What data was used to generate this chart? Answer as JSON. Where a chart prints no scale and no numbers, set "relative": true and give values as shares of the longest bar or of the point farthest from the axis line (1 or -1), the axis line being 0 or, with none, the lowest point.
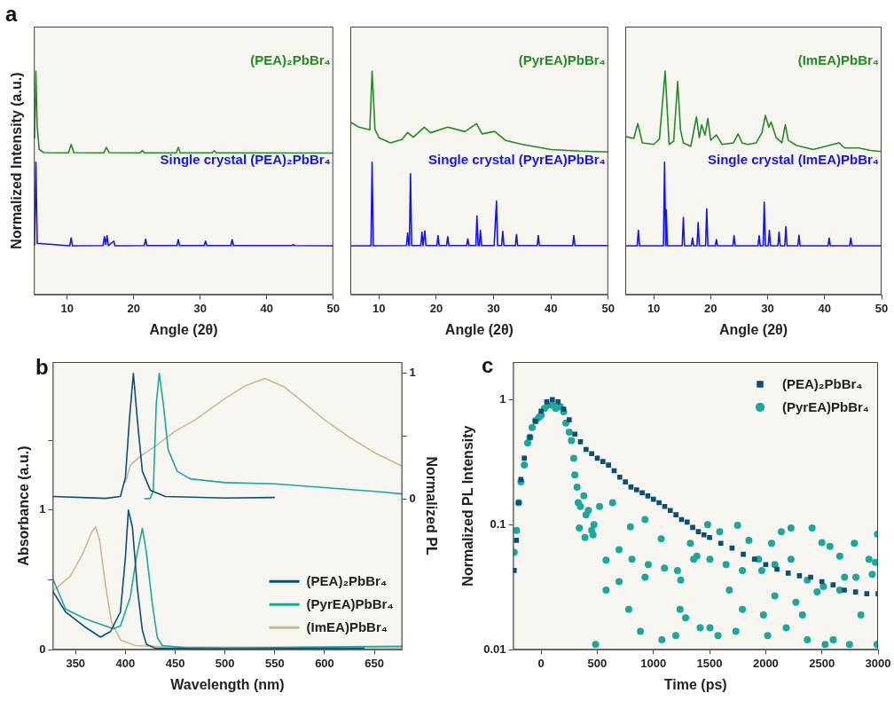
{
  "chart_data": [
    {
      "type": "line",
      "relative": true,
      "marker": "none",
      "annotations": [
        "a"
      ],
      "xlabel": "Angle (2θ)",
      "ylabel": "Normalized Intensity (a.u.)",
      "xlim": [
        5,
        50
      ],
      "xticks": [
        10,
        20,
        30,
        40,
        50
      ],
      "series": [
        {
          "name": "(PEA)₂PbBr₄",
          "color": "#228b22",
          "x": [
            5.1,
            5.3,
            5.5,
            5.8,
            6.5,
            10.2,
            10.6,
            11,
            15.5,
            15.9,
            16.3,
            21,
            21.3,
            21.6,
            26.4,
            26.7,
            27,
            31.8,
            32.1,
            32.4,
            50
          ],
          "values": [
            0.7,
            1,
            0.75,
            0.65,
            0.636,
            0.635,
            0.673,
            0.636,
            0.635,
            0.66,
            0.636,
            0.635,
            0.646,
            0.635,
            0.635,
            0.66,
            0.635,
            0.635,
            0.645,
            0.635,
            0.634
          ]
        },
        {
          "name": "Single crystal (PEA)₂PbBr₄",
          "color": "#1414f0",
          "x": [
            5.1,
            5.3,
            5.5,
            10.4,
            10.6,
            10.8,
            15.4,
            15.6,
            15.8,
            16,
            16.2,
            17,
            17.2,
            21.6,
            21.8,
            22,
            26.5,
            26.7,
            26.9,
            30.6,
            30.8,
            31,
            34.6,
            34.8,
            35,
            43.8,
            44,
            44.2,
            50
          ],
          "values": [
            0.22,
            0.593,
            0.23,
            0.219,
            0.254,
            0.219,
            0.22,
            0.26,
            0.225,
            0.265,
            0.22,
            0.24,
            0.219,
            0.22,
            0.249,
            0.22,
            0.22,
            0.247,
            0.22,
            0.22,
            0.24,
            0.22,
            0.22,
            0.247,
            0.22,
            0.22,
            0.225,
            0.22,
            0.219
          ]
        }
      ]
    },
    {
      "type": "line",
      "relative": true,
      "marker": "none",
      "xlabel": "Angle (2θ)",
      "xlim": [
        5,
        50
      ],
      "xticks": [
        10,
        20,
        30,
        40,
        50
      ],
      "series": [
        {
          "name": "(PyrEA)PbBr₄",
          "color": "#228b22",
          "x": [
            5,
            6.5,
            8.4,
            8.8,
            9.3,
            10,
            12,
            14,
            15,
            16,
            17.9,
            19,
            22,
            25,
            27,
            28,
            30.2,
            32,
            35,
            40,
            45,
            50
          ],
          "values": [
            0.773,
            0.75,
            0.738,
            1,
            0.74,
            0.703,
            0.68,
            0.695,
            0.726,
            0.705,
            0.75,
            0.725,
            0.75,
            0.73,
            0.766,
            0.72,
            0.731,
            0.692,
            0.673,
            0.65,
            0.643,
            0.639
          ]
        },
        {
          "name": "Single crystal (PyrEA)PbBr₄",
          "color": "#1414f0",
          "x": [
            5,
            8.6,
            8.8,
            9,
            14.8,
            15,
            15.2,
            15.3,
            15.5,
            15.7,
            17.3,
            17.5,
            17.7,
            17.8,
            18,
            18.2,
            20.1,
            20.3,
            20.5,
            21.8,
            22,
            22.2,
            25.3,
            25.5,
            25.7,
            26.9,
            27.1,
            27.3,
            27.5,
            27.7,
            27.9,
            30.1,
            30.5,
            30.7,
            31.4,
            31.6,
            31.8,
            33.8,
            34,
            34.2,
            37.6,
            37.8,
            38,
            43.8,
            44,
            44.2,
            50
          ],
          "values": [
            0.219,
            0.219,
            0.593,
            0.219,
            0.22,
            0.277,
            0.22,
            0.22,
            0.542,
            0.22,
            0.22,
            0.281,
            0.22,
            0.22,
            0.286,
            0.22,
            0.22,
            0.265,
            0.22,
            0.22,
            0.26,
            0.22,
            0.22,
            0.25,
            0.22,
            0.22,
            0.353,
            0.22,
            0.22,
            0.288,
            0.22,
            0.22,
            0.42,
            0.22,
            0.22,
            0.284,
            0.22,
            0.22,
            0.27,
            0.22,
            0.22,
            0.265,
            0.22,
            0.22,
            0.265,
            0.22,
            0.22
          ]
        }
      ]
    },
    {
      "type": "line",
      "relative": true,
      "marker": "none",
      "xlabel": "Angle (2θ)",
      "xlim": [
        5,
        50
      ],
      "xticks": [
        10,
        20,
        30,
        40,
        50
      ],
      "series": [
        {
          "name": "(ImEA)PbBr₄",
          "color": "#228b22",
          "x": [
            5,
            6.5,
            7.2,
            8,
            10,
            11,
            12,
            12.7,
            13.5,
            14.2,
            14.7,
            15.2,
            16.5,
            17.5,
            18,
            18.4,
            19,
            19.5,
            20,
            21,
            22,
            24,
            24.8,
            25.5,
            26.5,
            28,
            29,
            29.6,
            30.2,
            30.6,
            31.5,
            32.5,
            33.1,
            33.6,
            35,
            38,
            42.5,
            43.5,
            46,
            48,
            50
          ],
          "values": [
            0.708,
            0.7,
            0.766,
            0.68,
            0.673,
            0.697,
            1,
            0.673,
            0.687,
            0.955,
            0.738,
            0.68,
            0.664,
            0.796,
            0.703,
            0.761,
            0.715,
            0.789,
            0.692,
            0.715,
            0.673,
            0.68,
            0.72,
            0.68,
            0.673,
            0.68,
            0.726,
            0.803,
            0.75,
            0.773,
            0.703,
            0.68,
            0.761,
            0.692,
            0.669,
            0.65,
            0.68,
            0.657,
            0.657,
            0.646,
            0.641
          ]
        },
        {
          "name": "Single crystal (ImEA)PbBr₄",
          "color": "#1414f0",
          "x": [
            5,
            7.1,
            7.3,
            7.5,
            11.7,
            11.9,
            12.1,
            12.2,
            12.4,
            15,
            15.2,
            15.4,
            16.6,
            16.8,
            17,
            17.6,
            17.8,
            18,
            19.1,
            19.3,
            19.5,
            20.8,
            21,
            21.2,
            23.9,
            24.1,
            24.3,
            28.3,
            28.5,
            28.7,
            29.2,
            29.4,
            29.6,
            30.1,
            30.3,
            30.5,
            31.8,
            32,
            32.2,
            33,
            33.2,
            33.4,
            35.3,
            35.5,
            35.7,
            40.6,
            40.8,
            41,
            44.4,
            44.6,
            44.8,
            50
          ],
          "values": [
            0.219,
            0.219,
            0.288,
            0.219,
            0.219,
            0.593,
            0.219,
            0.38,
            0.219,
            0.219,
            0.346,
            0.219,
            0.219,
            0.254,
            0.219,
            0.219,
            0.323,
            0.219,
            0.219,
            0.385,
            0.219,
            0.219,
            0.247,
            0.219,
            0.219,
            0.265,
            0.219,
            0.219,
            0.265,
            0.219,
            0.219,
            0.415,
            0.219,
            0.219,
            0.288,
            0.219,
            0.219,
            0.281,
            0.219,
            0.219,
            0.304,
            0.219,
            0.219,
            0.267,
            0.219,
            0.219,
            0.254,
            0.219,
            0.219,
            0.254,
            0.219,
            0.219
          ]
        }
      ]
    },
    {
      "type": "line",
      "marker": "none",
      "annotations": [
        "b"
      ],
      "xlabel": "Wavelength (nm)",
      "ylabel": "Absorbance (a.u.)",
      "y2label": "Normalized PL",
      "legend": "bottom right",
      "xlim": [
        327,
        678
      ],
      "xticks": [
        350,
        400,
        450,
        500,
        550,
        600,
        650
      ],
      "ylim": [
        0,
        2.06
      ],
      "yticks": [
        0,
        {
          "value": 0.5,
          "label": null
        },
        1,
        {
          "value": 1.5,
          "label": null
        }
      ],
      "y2lim": [
        -1.2,
        1.09
      ],
      "y2ticks": [
        0,
        {
          "value": 0.5,
          "label": null
        },
        1
      ],
      "series": [
        {
          "name": "(PEA)₂PbBr₄",
          "color": "#0b4f78",
          "x": [
            327,
            340,
            360,
            375,
            385,
            395,
            400,
            403,
            407,
            412,
            417,
            421,
            430,
            500,
            600,
            640
          ],
          "values": [
            0.42,
            0.27,
            0.16,
            0.09,
            0.13,
            0.27,
            0.66,
            1,
            0.88,
            0.44,
            0.14,
            0.04,
            0.01,
            0.005,
            0.01,
            0.01
          ]
        },
        {
          "name": "(PyrEA)PbBr₄",
          "color": "#1aa89a",
          "x": [
            327,
            340,
            360,
            380,
            388,
            395,
            405,
            411,
            417,
            421,
            427,
            432,
            437,
            460,
            500,
            600,
            678
          ],
          "values": [
            0.51,
            0.29,
            0.22,
            0.17,
            0.15,
            0.17,
            0.38,
            0.66,
            0.87,
            0.7,
            0.33,
            0.09,
            0.03,
            0.015,
            0.012,
            0.02,
            0.025
          ]
        },
        {
          "name": "(ImEA)PbBr₄",
          "color": "#c9b99b",
          "x": [
            327,
            345,
            358,
            366,
            370,
            374,
            380,
            386,
            395,
            410,
            440,
            678
          ],
          "values": [
            0.42,
            0.53,
            0.7,
            0.84,
            0.88,
            0.79,
            0.46,
            0.2,
            0.07,
            0.03,
            0.02,
            0.015
          ]
        },
        {
          "color": "#0b4f78",
          "axis": "y2",
          "x": [
            327,
            380,
            395,
            400,
            404,
            408,
            412,
            417,
            425,
            440,
            500,
            550
          ],
          "values": [
            0.02,
            0.005,
            0.02,
            0.17,
            0.63,
            1,
            0.63,
            0.22,
            0.07,
            0.02,
            0.007,
            0.012
          ]
        },
        {
          "color": "#1aa89a",
          "axis": "y2",
          "x": [
            419,
            425,
            428,
            431,
            434,
            438,
            443,
            452,
            465,
            500,
            550,
            600,
            650,
            678
          ],
          "values": [
            0,
            0.005,
            0.07,
            0.76,
            1,
            0.76,
            0.39,
            0.22,
            0.16,
            0.13,
            0.12,
            0.09,
            0.06,
            0.04
          ]
        },
        {
          "color": "#c9b99b",
          "axis": "y2",
          "x": [
            400,
            405,
            415,
            430,
            450,
            470,
            500,
            520,
            540,
            560,
            580,
            600,
            625,
            650,
            678
          ],
          "values": [
            0.13,
            0.27,
            0.34,
            0.42,
            0.54,
            0.63,
            0.8,
            0.9,
            0.96,
            0.89,
            0.76,
            0.63,
            0.49,
            0.37,
            0.26
          ]
        }
      ]
    },
    {
      "type": "scatter",
      "annotations": [
        "c"
      ],
      "xlabel": "Time (ps)",
      "ylabel": "Normalized PL Intensity",
      "legend": "top right",
      "log": "y",
      "xlim": [
        -250,
        3000
      ],
      "xticks": [
        0,
        500,
        1000,
        1500,
        2000,
        2500,
        3000
      ],
      "ylim": [
        0.01,
        2
      ],
      "yticks": [
        0.01,
        0.1,
        1
      ],
      "series": [
        {
          "name": "(PEA)₂PbBr₄",
          "color": "#0b4f78",
          "marker": "square",
          "x": [
            -240,
            -220,
            -200,
            -180,
            -150,
            -100,
            -50,
            0,
            50,
            100,
            150,
            200,
            250,
            300,
            350,
            400,
            450,
            500,
            550,
            600,
            650,
            700,
            750,
            800,
            850,
            900,
            950,
            1000,
            1050,
            1100,
            1150,
            1200,
            1250,
            1300,
            1350,
            1400,
            1450,
            1500,
            1600,
            1700,
            1800,
            1900,
            2000,
            2100,
            2200,
            2300,
            2400,
            2500,
            2600,
            2700,
            2800,
            2900,
            3000
          ],
          "values": [
            0.043,
            0.075,
            0.15,
            0.23,
            0.34,
            0.5,
            0.67,
            0.81,
            0.96,
            1,
            0.96,
            0.84,
            0.69,
            0.53,
            0.46,
            0.4,
            0.37,
            0.34,
            0.32,
            0.3,
            0.27,
            0.24,
            0.22,
            0.2,
            0.19,
            0.18,
            0.17,
            0.16,
            0.15,
            0.14,
            0.13,
            0.12,
            0.11,
            0.105,
            0.095,
            0.088,
            0.083,
            0.079,
            0.071,
            0.065,
            0.058,
            0.053,
            0.048,
            0.044,
            0.041,
            0.039,
            0.038,
            0.035,
            0.033,
            0.03,
            0.029,
            0.028,
            0.028
          ]
        },
        {
          "name": "(PyrEA)PbBr₄",
          "color": "#1aa89a",
          "marker": "circle",
          "x": [
            -240,
            -220,
            -200,
            -180,
            -150,
            -120,
            -100,
            -80,
            -50,
            -20,
            0,
            30,
            60,
            100,
            130,
            170,
            200,
            220,
            250,
            270,
            290,
            300,
            320,
            330,
            350,
            380,
            400,
            420,
            450,
            470,
            485,
            340,
            390,
            520,
            636,
            578,
            694,
            780,
            884,
            795,
            925,
            925,
            1069,
            1075,
            1199,
            1214,
            1237,
            1286,
            1329,
            1387,
            1416,
            1483,
            1503,
            1575,
            1590,
            1676,
            1734,
            1749,
            1792,
            1850,
            1965,
            1980,
            2017,
            2052,
            2081,
            2139,
            2182,
            2225,
            2269,
            2327,
            2370,
            2413,
            2457,
            2500,
            2529,
            2572,
            2601,
            2659,
            2702,
            2746,
            2789,
            2847,
            2919,
            2977,
            2991,
            2995,
            462,
            578,
            694,
            809,
            954,
            1098,
            1243,
            1358,
            1503,
            1647,
            1792,
            1936,
            2081,
            2225,
            2370,
            2514,
            2659,
            2803,
            2948
          ],
          "values": [
            0.06,
            0.09,
            0.15,
            0.22,
            0.3,
            0.45,
            0.5,
            0.6,
            0.68,
            0.72,
            0.75,
            0.85,
            0.9,
            0.9,
            0.85,
            0.88,
            0.8,
            0.65,
            0.55,
            0.47,
            0.34,
            0.25,
            0.2,
            0.15,
            0.14,
            0.17,
            0.12,
            0.13,
            0.09,
            0.1,
            0.011,
            0.094,
            0.079,
            0.14,
            0.15,
            0.03,
            0.035,
            0.021,
            0.014,
            0.096,
            0.11,
            0.038,
            0.077,
            0.012,
            0.013,
            0.043,
            0.021,
            0.018,
            0.071,
            0.056,
            0.015,
            0.1,
            0.015,
            0.013,
            0.088,
            0.03,
            0.014,
            0.099,
            0.021,
            0.075,
            0.043,
            0.019,
            0.013,
            0.071,
            0.027,
            0.088,
            0.015,
            0.094,
            0.024,
            0.019,
            0.012,
            0.094,
            0.029,
            0.072,
            0.011,
            0.067,
            0.012,
            0.056,
            0.038,
            0.011,
            0.071,
            0.019,
            0.053,
            0.05,
            0.011,
            0.084,
            0.083,
            0.052,
            0.063,
            0.053,
            0.048,
            0.045,
            0.036,
            0.053,
            0.053,
            0.048,
            0.043,
            0.053,
            0.048,
            0.053,
            0.036,
            0.032,
            0.03,
            0.038,
            0.04
          ]
        }
      ]
    }
  ]
}
